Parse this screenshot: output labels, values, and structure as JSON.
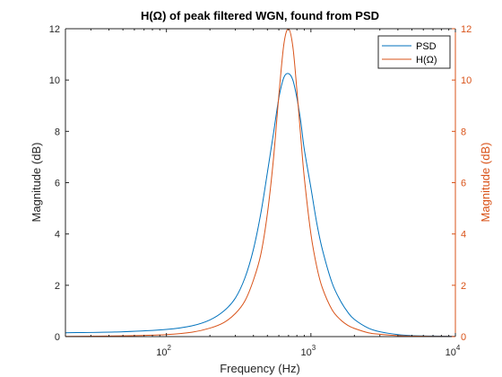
{
  "chart_data": {
    "type": "line",
    "title": "H(Ω) of peak filtered WGN, found from PSD",
    "xlabel": "Frequency (Hz)",
    "ylabel_left": "Magnitude (dB)",
    "ylabel_right": "Magnitude (dB)",
    "xscale": "log",
    "xlim": [
      20,
      10000
    ],
    "ylim_left": [
      0,
      12
    ],
    "ylim_right": [
      0,
      12
    ],
    "x_ticks": [
      100,
      1000,
      10000
    ],
    "x_tick_labels": [
      {
        "base": "10",
        "exp": "2"
      },
      {
        "base": "10",
        "exp": "3"
      },
      {
        "base": "10",
        "exp": "4"
      }
    ],
    "y_ticks_left": [
      0,
      2,
      4,
      6,
      8,
      10,
      12
    ],
    "y_ticks_right": [
      0,
      2,
      4,
      6,
      8,
      10,
      12
    ],
    "grid": false,
    "legend_position": "top-right",
    "series": [
      {
        "name": "PSD",
        "axis": "left",
        "color": "#0072BD",
        "x": [
          20,
          50,
          100,
          150,
          200,
          250,
          300,
          350,
          400,
          450,
          500,
          550,
          600,
          650,
          700,
          750,
          800,
          850,
          900,
          1000,
          1100,
          1200,
          1400,
          1600,
          1800,
          2000,
          2500,
          3000,
          4000,
          5000,
          7000,
          10000
        ],
        "y": [
          0.15,
          0.19,
          0.28,
          0.42,
          0.65,
          1.0,
          1.5,
          2.3,
          3.4,
          4.8,
          6.4,
          7.9,
          9.3,
          10.1,
          10.25,
          10.0,
          9.3,
          8.4,
          7.3,
          5.8,
          4.4,
          3.4,
          2.1,
          1.4,
          0.95,
          0.67,
          0.33,
          0.19,
          0.08,
          0.04,
          0.02,
          0.01
        ]
      },
      {
        "name": "H(Ω)",
        "axis": "right",
        "color": "#D95319",
        "x": [
          20,
          50,
          100,
          150,
          200,
          250,
          300,
          350,
          400,
          450,
          500,
          550,
          600,
          650,
          700,
          750,
          800,
          850,
          900,
          1000,
          1100,
          1200,
          1400,
          1600,
          1800,
          2000,
          2500,
          3000,
          4000,
          5000,
          7000,
          10000
        ],
        "y": [
          0.01,
          0.03,
          0.08,
          0.17,
          0.33,
          0.55,
          0.9,
          1.4,
          2.2,
          3.2,
          4.8,
          6.9,
          9.4,
          11.4,
          12.0,
          11.3,
          9.6,
          7.8,
          6.2,
          4.0,
          2.7,
          1.9,
          1.05,
          0.66,
          0.44,
          0.32,
          0.15,
          0.09,
          0.04,
          0.02,
          0.01,
          0.005
        ]
      }
    ]
  }
}
